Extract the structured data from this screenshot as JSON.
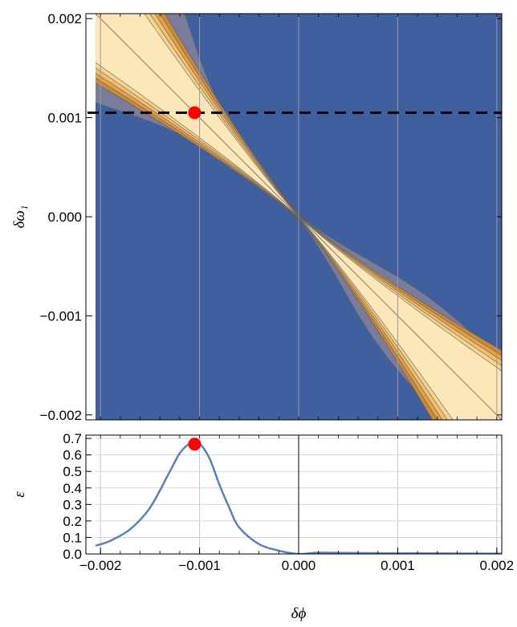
{
  "chart_data": [
    {
      "type": "contour",
      "xlabel": "δϕ",
      "ylabel": "δω₁",
      "xlim": [
        -0.00205,
        0.00205
      ],
      "ylim": [
        -0.00205,
        0.00205
      ],
      "xticks": [
        -0.002,
        -0.001,
        0.0,
        0.001,
        0.002
      ],
      "yticks": [
        -0.002,
        -0.001,
        0.0,
        0.001,
        0.002
      ],
      "xtick_labels": [
        "−0.002",
        "−0.001",
        "0.000",
        "0.001",
        "0.002"
      ],
      "ytick_labels": [
        "−0.002",
        "−0.001",
        "0.000",
        "0.001",
        "0.002"
      ],
      "grid": true,
      "ridge": "anti-diagonal band centred on δω₁ = −δϕ, widening away from the origin and pinched at (0, 0)",
      "contour_levels": [
        0.1,
        0.2,
        0.3,
        0.4,
        0.5,
        0.6
      ],
      "level_colors": [
        "#3f5f9f",
        "#7a7c9c",
        "#c98a3a",
        "#e4a148",
        "#f1bf6f",
        "#f8d490",
        "#fde7b8"
      ],
      "dashed_line": {
        "y": 0.00105,
        "color": "#000000"
      },
      "marker": {
        "x": -0.00105,
        "y": 0.00105,
        "color": "#ff0000"
      }
    },
    {
      "type": "line",
      "xlabel": "δϕ",
      "ylabel": "ε",
      "xlim": [
        -0.00205,
        0.00205
      ],
      "ylim": [
        0.0,
        0.72
      ],
      "xticks": [
        -0.002,
        -0.001,
        0.0,
        0.001,
        0.002
      ],
      "yticks": [
        0.0,
        0.1,
        0.2,
        0.3,
        0.4,
        0.5,
        0.6,
        0.7
      ],
      "xtick_labels": [
        "−0.002",
        "−0.001",
        "0.000",
        "0.001",
        "0.002"
      ],
      "ytick_labels": [
        "0.0",
        "0.1",
        "0.2",
        "0.3",
        "0.4",
        "0.5",
        "0.6",
        "0.7"
      ],
      "grid": true,
      "series": [
        {
          "color": "#5b7fb8",
          "x": [
            -0.00205,
            -0.0019,
            -0.0017,
            -0.0015,
            -0.0013,
            -0.0012,
            -0.0011,
            -0.00105,
            -0.001,
            -0.0009,
            -0.0008,
            -0.0007,
            -0.0006,
            -0.0004,
            -0.0002,
            0.0,
            0.0002,
            0.0005,
            0.001,
            0.0015,
            0.00205
          ],
          "y": [
            0.05,
            0.08,
            0.15,
            0.28,
            0.5,
            0.61,
            0.67,
            0.675,
            0.67,
            0.58,
            0.42,
            0.28,
            0.16,
            0.06,
            0.02,
            0.0,
            0.008,
            0.006,
            0.004,
            0.003,
            0.002
          ]
        }
      ],
      "vertical_line": {
        "x": 0.0,
        "color": "#000000"
      },
      "marker": {
        "x": -0.00105,
        "y": 0.665,
        "color": "#ff0000"
      }
    }
  ]
}
